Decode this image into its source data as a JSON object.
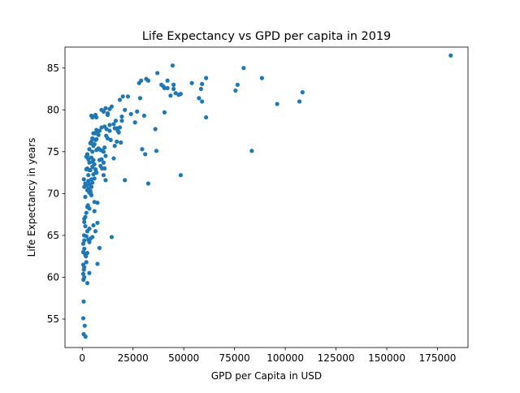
{
  "chart_data": {
    "type": "scatter",
    "title": "Life Expectancy vs GPD per capita in 2019",
    "xlabel": "GPD per Capita in USD",
    "ylabel": "Life Expectancy in years",
    "xlim": [
      -8500,
      190000
    ],
    "ylim": [
      51.6,
      87.5
    ],
    "xticks": [
      0,
      25000,
      50000,
      75000,
      100000,
      125000,
      150000,
      175000
    ],
    "xtick_labels": [
      "0",
      "25000",
      "50000",
      "75000",
      "100000",
      "125000",
      "150000",
      "175000"
    ],
    "yticks": [
      55,
      60,
      65,
      70,
      75,
      80,
      85
    ],
    "ytick_labels": [
      "55",
      "60",
      "65",
      "70",
      "75",
      "80",
      "85"
    ],
    "grid": false,
    "legend": "none",
    "marker_color": "#1f77b4",
    "points": [
      [
        181500,
        86.5
      ],
      [
        79500,
        85.0
      ],
      [
        88500,
        83.8
      ],
      [
        75500,
        82.3
      ],
      [
        76500,
        83.0
      ],
      [
        83500,
        75.1
      ],
      [
        96000,
        80.7
      ],
      [
        107000,
        81.0
      ],
      [
        108500,
        82.1
      ],
      [
        44500,
        85.3
      ],
      [
        54000,
        83.2
      ],
      [
        59000,
        83.1
      ],
      [
        61000,
        83.8
      ],
      [
        57500,
        81.4
      ],
      [
        59000,
        81.0
      ],
      [
        58500,
        82.5
      ],
      [
        61000,
        79.1
      ],
      [
        48500,
        72.2
      ],
      [
        37000,
        84.4
      ],
      [
        42000,
        83.5
      ],
      [
        45000,
        83.0
      ],
      [
        46000,
        82.0
      ],
      [
        47500,
        81.8
      ],
      [
        48500,
        81.9
      ],
      [
        45000,
        82.5
      ],
      [
        43500,
        81.7
      ],
      [
        40000,
        82.8
      ],
      [
        40500,
        82.6
      ],
      [
        39000,
        83.0
      ],
      [
        42000,
        82.6
      ],
      [
        32500,
        83.5
      ],
      [
        31500,
        83.7
      ],
      [
        29000,
        83.5
      ],
      [
        28000,
        83.2
      ],
      [
        40500,
        79.7
      ],
      [
        36000,
        77.7
      ],
      [
        36500,
        75.1
      ],
      [
        29500,
        75.3
      ],
      [
        31000,
        74.7
      ],
      [
        32500,
        71.2
      ],
      [
        28500,
        81.4
      ],
      [
        27000,
        79.8
      ],
      [
        30500,
        79.3
      ],
      [
        26000,
        78.5
      ],
      [
        24000,
        79.5
      ],
      [
        20000,
        81.6
      ],
      [
        22500,
        81.6
      ],
      [
        18500,
        81.2
      ],
      [
        21000,
        80.0
      ],
      [
        19500,
        79.2
      ],
      [
        19500,
        78.7
      ],
      [
        16500,
        78.7
      ],
      [
        17000,
        77.8
      ],
      [
        18000,
        77.3
      ],
      [
        16000,
        77.8
      ],
      [
        17500,
        77.5
      ],
      [
        18500,
        77.9
      ],
      [
        15500,
        78.3
      ],
      [
        19000,
        76.1
      ],
      [
        17000,
        76.2
      ],
      [
        16000,
        75.7
      ],
      [
        15500,
        74.2
      ],
      [
        21000,
        71.6
      ],
      [
        14500,
        64.8
      ],
      [
        12500,
        79.6
      ],
      [
        13500,
        78.2
      ],
      [
        13500,
        80.1
      ],
      [
        11500,
        80.2
      ],
      [
        10500,
        79.8
      ],
      [
        9500,
        80.0
      ],
      [
        11000,
        78.0
      ],
      [
        12000,
        77.7
      ],
      [
        13500,
        77.5
      ],
      [
        12500,
        76.6
      ],
      [
        14000,
        76.4
      ],
      [
        11000,
        75.5
      ],
      [
        10000,
        75.1
      ],
      [
        9000,
        75.2
      ],
      [
        10500,
        75.0
      ],
      [
        11500,
        74.5
      ],
      [
        9500,
        74.1
      ],
      [
        10500,
        73.7
      ],
      [
        11000,
        73.0
      ],
      [
        10500,
        72.2
      ],
      [
        11500,
        71.6
      ],
      [
        9000,
        73.3
      ],
      [
        8500,
        74.0
      ],
      [
        8000,
        77.0
      ],
      [
        8500,
        77.5
      ],
      [
        9500,
        77.9
      ],
      [
        7500,
        77.3
      ],
      [
        7000,
        76.5
      ],
      [
        6500,
        76.4
      ],
      [
        6000,
        75.9
      ],
      [
        5500,
        75.7
      ],
      [
        5000,
        76.6
      ],
      [
        4500,
        76.2
      ],
      [
        7000,
        75.2
      ],
      [
        5000,
        75.0
      ],
      [
        4500,
        74.3
      ],
      [
        5500,
        74.0
      ],
      [
        6000,
        73.5
      ],
      [
        5000,
        73.2
      ],
      [
        6500,
        72.9
      ],
      [
        7000,
        72.5
      ],
      [
        5500,
        72.3
      ],
      [
        6000,
        71.8
      ],
      [
        4500,
        71.7
      ],
      [
        5000,
        71.3
      ],
      [
        4500,
        70.8
      ],
      [
        3500,
        71.1
      ],
      [
        3000,
        70.6
      ],
      [
        4000,
        70.3
      ],
      [
        3500,
        70.1
      ],
      [
        4500,
        69.8
      ],
      [
        3000,
        72.2
      ],
      [
        3500,
        72.8
      ],
      [
        2500,
        73.0
      ],
      [
        2000,
        72.9
      ],
      [
        3000,
        74.1
      ],
      [
        2500,
        74.7
      ],
      [
        2000,
        74.4
      ],
      [
        3500,
        75.3
      ],
      [
        4500,
        79.3
      ],
      [
        5000,
        79.1
      ],
      [
        6500,
        79.4
      ],
      [
        7000,
        79.1
      ],
      [
        6000,
        69.0
      ],
      [
        7500,
        68.9
      ],
      [
        6000,
        67.9
      ],
      [
        3500,
        68.2
      ],
      [
        2500,
        68.4
      ],
      [
        2000,
        67.7
      ],
      [
        7500,
        66.5
      ],
      [
        5500,
        66.2
      ],
      [
        6500,
        65.5
      ],
      [
        3500,
        65.8
      ],
      [
        2500,
        65.5
      ],
      [
        1500,
        66.1
      ],
      [
        1000,
        66.6
      ],
      [
        1500,
        67.2
      ],
      [
        1000,
        67.0
      ],
      [
        2000,
        64.9
      ],
      [
        3000,
        64.5
      ],
      [
        4000,
        64.6
      ],
      [
        5000,
        64.8
      ],
      [
        3500,
        64.2
      ],
      [
        1000,
        64.4
      ],
      [
        500,
        64.0
      ],
      [
        1000,
        63.4
      ],
      [
        500,
        63.0
      ],
      [
        1500,
        62.7
      ],
      [
        2500,
        62.9
      ],
      [
        8500,
        63.5
      ],
      [
        500,
        61.5
      ],
      [
        1000,
        61.2
      ],
      [
        800,
        60.9
      ],
      [
        500,
        60.4
      ],
      [
        1000,
        60.0
      ],
      [
        600,
        59.7
      ],
      [
        2500,
        59.3
      ],
      [
        3500,
        60.5
      ],
      [
        7500,
        61.6
      ],
      [
        2000,
        61.8
      ],
      [
        700,
        57.1
      ],
      [
        500,
        55.1
      ],
      [
        1200,
        54.2
      ],
      [
        700,
        53.2
      ],
      [
        1600,
        52.9
      ],
      [
        1500,
        71.2
      ],
      [
        1000,
        70.8
      ],
      [
        800,
        71.7
      ],
      [
        1500,
        69.6
      ],
      [
        2500,
        70.4
      ],
      [
        2000,
        71.0
      ],
      [
        3000,
        71.5
      ],
      [
        4000,
        72.8
      ],
      [
        5000,
        73.8
      ],
      [
        3500,
        73.7
      ],
      [
        2500,
        74.5
      ],
      [
        4000,
        76.0
      ],
      [
        5500,
        77.2
      ],
      [
        6500,
        77.2
      ],
      [
        7000,
        77.6
      ],
      [
        8000,
        75.4
      ],
      [
        12500,
        79.4
      ],
      [
        14500,
        80.4
      ],
      [
        1800,
        62.5
      ],
      [
        900,
        65.0
      ],
      [
        2800,
        68.6
      ],
      [
        4200,
        70.0
      ],
      [
        6800,
        72.6
      ],
      [
        9800,
        73.0
      ],
      [
        11800,
        76.9
      ]
    ]
  }
}
